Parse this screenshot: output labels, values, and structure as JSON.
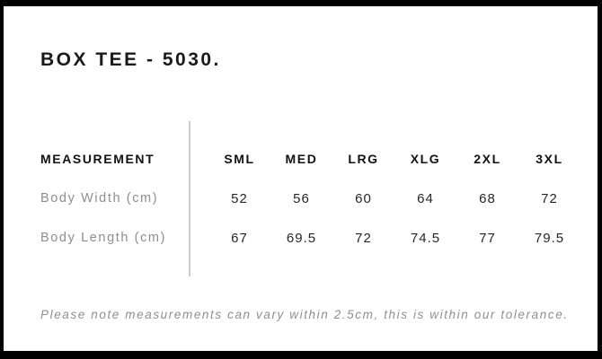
{
  "title": "BOX TEE - 5030.",
  "size_table": {
    "measurement_header": "MEASUREMENT",
    "columns": [
      "SML",
      "MED",
      "LRG",
      "XLG",
      "2XL",
      "3XL"
    ],
    "rows": [
      {
        "label": "Body Width (cm)",
        "values": [
          "52",
          "56",
          "60",
          "64",
          "68",
          "72"
        ]
      },
      {
        "label": "Body Length (cm)",
        "values": [
          "67",
          "69.5",
          "72",
          "74.5",
          "77",
          "79.5"
        ]
      }
    ]
  },
  "note": "Please note measurements can vary within 2.5cm, this is within our tolerance.",
  "colors": {
    "frame_border": "#000000",
    "text_primary": "#1a1a1a",
    "text_values": "#262626",
    "text_muted": "#8e8e8e",
    "divider": "#cccccc",
    "background": "#ffffff"
  }
}
